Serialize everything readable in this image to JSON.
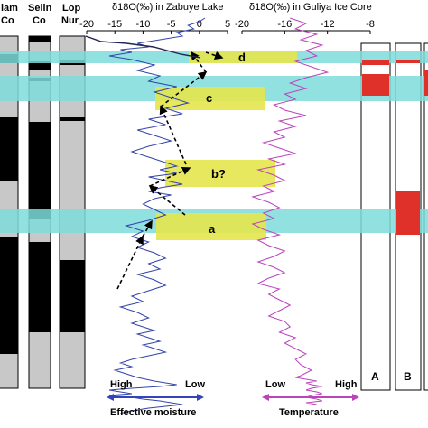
{
  "chart_data": [
    {
      "type": "line",
      "title": "",
      "xlabel": "δ18O(‰) in Zabuye Lake",
      "ylabel": "",
      "xlim": [
        -20,
        5
      ],
      "x_ticks": [
        "-20",
        "-15",
        "-10",
        "-5",
        "0",
        "5"
      ],
      "series": [
        {
          "color": "#3344aa",
          "x": [
            1,
            0,
            -2,
            -1,
            -4,
            -3,
            -7,
            -11,
            -9,
            -14,
            -12,
            -16,
            -12,
            -8,
            -11,
            -7,
            -9,
            -4,
            -8,
            -5,
            -2,
            -6,
            -3,
            -9,
            -6,
            -11,
            -8,
            -5,
            -9,
            -12,
            -10,
            -8,
            -6,
            -4,
            -7,
            -4,
            -9,
            -6,
            -3,
            -7,
            -9,
            -5,
            -8,
            -10,
            -8,
            -6,
            -9,
            -13,
            -10,
            -12,
            -9,
            -11,
            -8,
            -6,
            -9,
            -7,
            -11,
            -8,
            -6,
            -9,
            -12,
            -10,
            -14,
            -11,
            -9,
            -12,
            -10,
            -8,
            -11,
            -9,
            -7,
            -10,
            -8,
            -6,
            -9,
            -12,
            -14,
            -12,
            -15,
            -13,
            -11,
            -8,
            -4,
            -7,
            -12,
            -16,
            -14,
            -12,
            -16,
            -12,
            -10,
            -7,
            -5,
            -3,
            -6,
            -9,
            -11,
            -13,
            -14
          ],
          "y": [
            20,
            24,
            28,
            32,
            36,
            40,
            44,
            48,
            52,
            55,
            58,
            62,
            66,
            72,
            78,
            84,
            90,
            96,
            102,
            108,
            114,
            120,
            126,
            132,
            138,
            144,
            150,
            156,
            162,
            168,
            172,
            176,
            180,
            184,
            188,
            192,
            196,
            200,
            204,
            208,
            212,
            216,
            220,
            226,
            232,
            238,
            244,
            250,
            256,
            262,
            268,
            274,
            280,
            286,
            292,
            298,
            304,
            310,
            316,
            322,
            328,
            334,
            340,
            346,
            352,
            358,
            362,
            366,
            370,
            374,
            378,
            382,
            386,
            390,
            394,
            398,
            402,
            406,
            410,
            414,
            418,
            422,
            426,
            428,
            430,
            432,
            434,
            436,
            438,
            440,
            442,
            444,
            446,
            448,
            450,
            452,
            454,
            456,
            458
          ]
        }
      ]
    },
    {
      "type": "line",
      "title": "",
      "xlabel": "δ18O(‰) in Guliya Ice Core",
      "ylabel": "",
      "xlim": [
        -20,
        -8
      ],
      "x_ticks": [
        "-20",
        "-16",
        "-12",
        "-8"
      ],
      "series": [
        {
          "color": "#bb44bb",
          "x": [
            -15.5,
            -14,
            -15,
            -13,
            -14.5,
            -12.5,
            -14,
            -13,
            -15,
            -13.5,
            -12,
            -14,
            -15.5,
            -14,
            -16,
            -15,
            -17,
            -16,
            -14,
            -16.5,
            -15,
            -17,
            -16,
            -18,
            -16.5,
            -15,
            -17.5,
            -16,
            -18.5,
            -17,
            -16,
            -18,
            -17,
            -19,
            -17.5,
            -16.5,
            -18,
            -17,
            -19,
            -18,
            -16.5,
            -18.5,
            -17.5,
            -16,
            -17,
            -18.5,
            -17,
            -16,
            -17.5,
            -18.5,
            -16.5,
            -17.5,
            -16.5,
            -15.5,
            -16.5,
            -17.5,
            -16,
            -15.5,
            -16.5,
            -15,
            -16,
            -15,
            -14,
            -15,
            -14.5,
            -13.5,
            -14.5,
            -15,
            -14,
            -13,
            -14,
            -13.5,
            -12.5,
            -13.5,
            -14,
            -13,
            -12.5,
            -13.5,
            -14,
            -13,
            -12.5,
            -14,
            -13
          ],
          "y": [
            20,
            26,
            32,
            38,
            44,
            50,
            56,
            62,
            68,
            74,
            80,
            86,
            92,
            98,
            104,
            110,
            116,
            122,
            128,
            134,
            140,
            146,
            152,
            158,
            164,
            170,
            176,
            182,
            188,
            194,
            200,
            206,
            212,
            218,
            224,
            230,
            236,
            242,
            248,
            254,
            260,
            266,
            272,
            278,
            284,
            290,
            296,
            302,
            308,
            314,
            320,
            326,
            332,
            338,
            344,
            350,
            356,
            362,
            368,
            374,
            380,
            386,
            392,
            398,
            404,
            410,
            416,
            418,
            420,
            422,
            424,
            426,
            428,
            430,
            432,
            434,
            436,
            438,
            440,
            442,
            444,
            446,
            448
          ]
        }
      ]
    }
  ],
  "headers": {
    "col1_line1": "lam",
    "col1_line2": "Co",
    "col2_line1": "Selin",
    "col2_line2": "Co",
    "col3_line1": "Lop",
    "col3_line2": "Nur"
  },
  "events": [
    {
      "label": "d"
    },
    {
      "label": "c"
    },
    {
      "label": "b?"
    },
    {
      "label": "a"
    }
  ],
  "bottom": {
    "moisture_high": "High",
    "moisture_low": "Low",
    "moisture_label": "Effective moisture",
    "temp_low": "Low",
    "temp_high": "High",
    "temp_label": "Temperature"
  },
  "panels": {
    "a_label": "A",
    "b_label": "B"
  },
  "colors": {
    "band": "#7fdcdc",
    "box": "#e6e64d",
    "zabuye_line": "#3344aa",
    "guliya_line": "#bb44bb",
    "red": "#e0302a",
    "arrow_blue": "#3344bb",
    "arrow_magenta": "#bb44bb"
  }
}
